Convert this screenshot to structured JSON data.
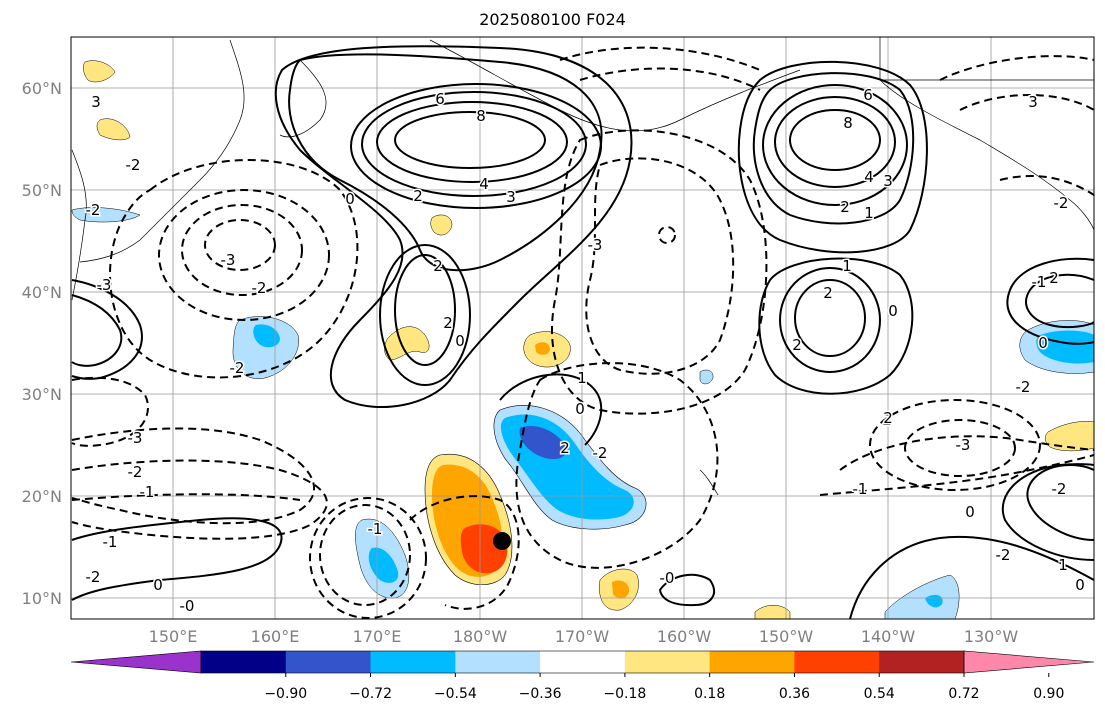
{
  "title": "2025080100 F024",
  "map": {
    "lat_labels": [
      "10°N",
      "20°N",
      "30°N",
      "40°N",
      "50°N",
      "60°N"
    ],
    "lon_labels": [
      "150°E",
      "160°E",
      "170°E",
      "180°W",
      "170°W",
      "160°W",
      "150°W",
      "140°W",
      "130°W"
    ],
    "label_color": "#808080",
    "contour_labels": [
      "6",
      "8",
      "4",
      "3",
      "2",
      "2",
      "2",
      "0",
      "0",
      "-3",
      "-2",
      "-3",
      "-2",
      "-1",
      "-1",
      "-2",
      "0",
      "-0",
      "6",
      "8",
      "4",
      "3",
      "2",
      "1",
      "1",
      "2",
      "2",
      "0",
      "1",
      "0",
      "-2",
      "-3",
      "-1",
      "2",
      "-2",
      "-3",
      "-2",
      "2",
      "0",
      "-0",
      "-1",
      "-2",
      "-1",
      "-1",
      "2",
      "0",
      "-2",
      "-2",
      "-3",
      "3",
      "3",
      "-2",
      "-2",
      "2",
      "1",
      "0"
    ],
    "marker": {
      "name": "storm-center",
      "color": "#000000"
    }
  },
  "colorbar": {
    "tick_labels": [
      "−0.90",
      "−0.72",
      "−0.54",
      "−0.36",
      "−0.18",
      "0.18",
      "0.36",
      "0.54",
      "0.72",
      "0.90"
    ],
    "colors": [
      "#9933cc",
      "#000088",
      "#3355cc",
      "#00bbff",
      "#b3e0ff",
      "#ffffff",
      "#ffe680",
      "#ffa500",
      "#ff4000",
      "#b22222",
      "#ff88aa"
    ]
  },
  "shading_colors": {
    "light_blue": "#b3e0ff",
    "blue": "#00bbff",
    "dark_blue": "#3355cc",
    "yellow": "#ffe680",
    "orange": "#ffa500",
    "red": "#ff4000"
  }
}
